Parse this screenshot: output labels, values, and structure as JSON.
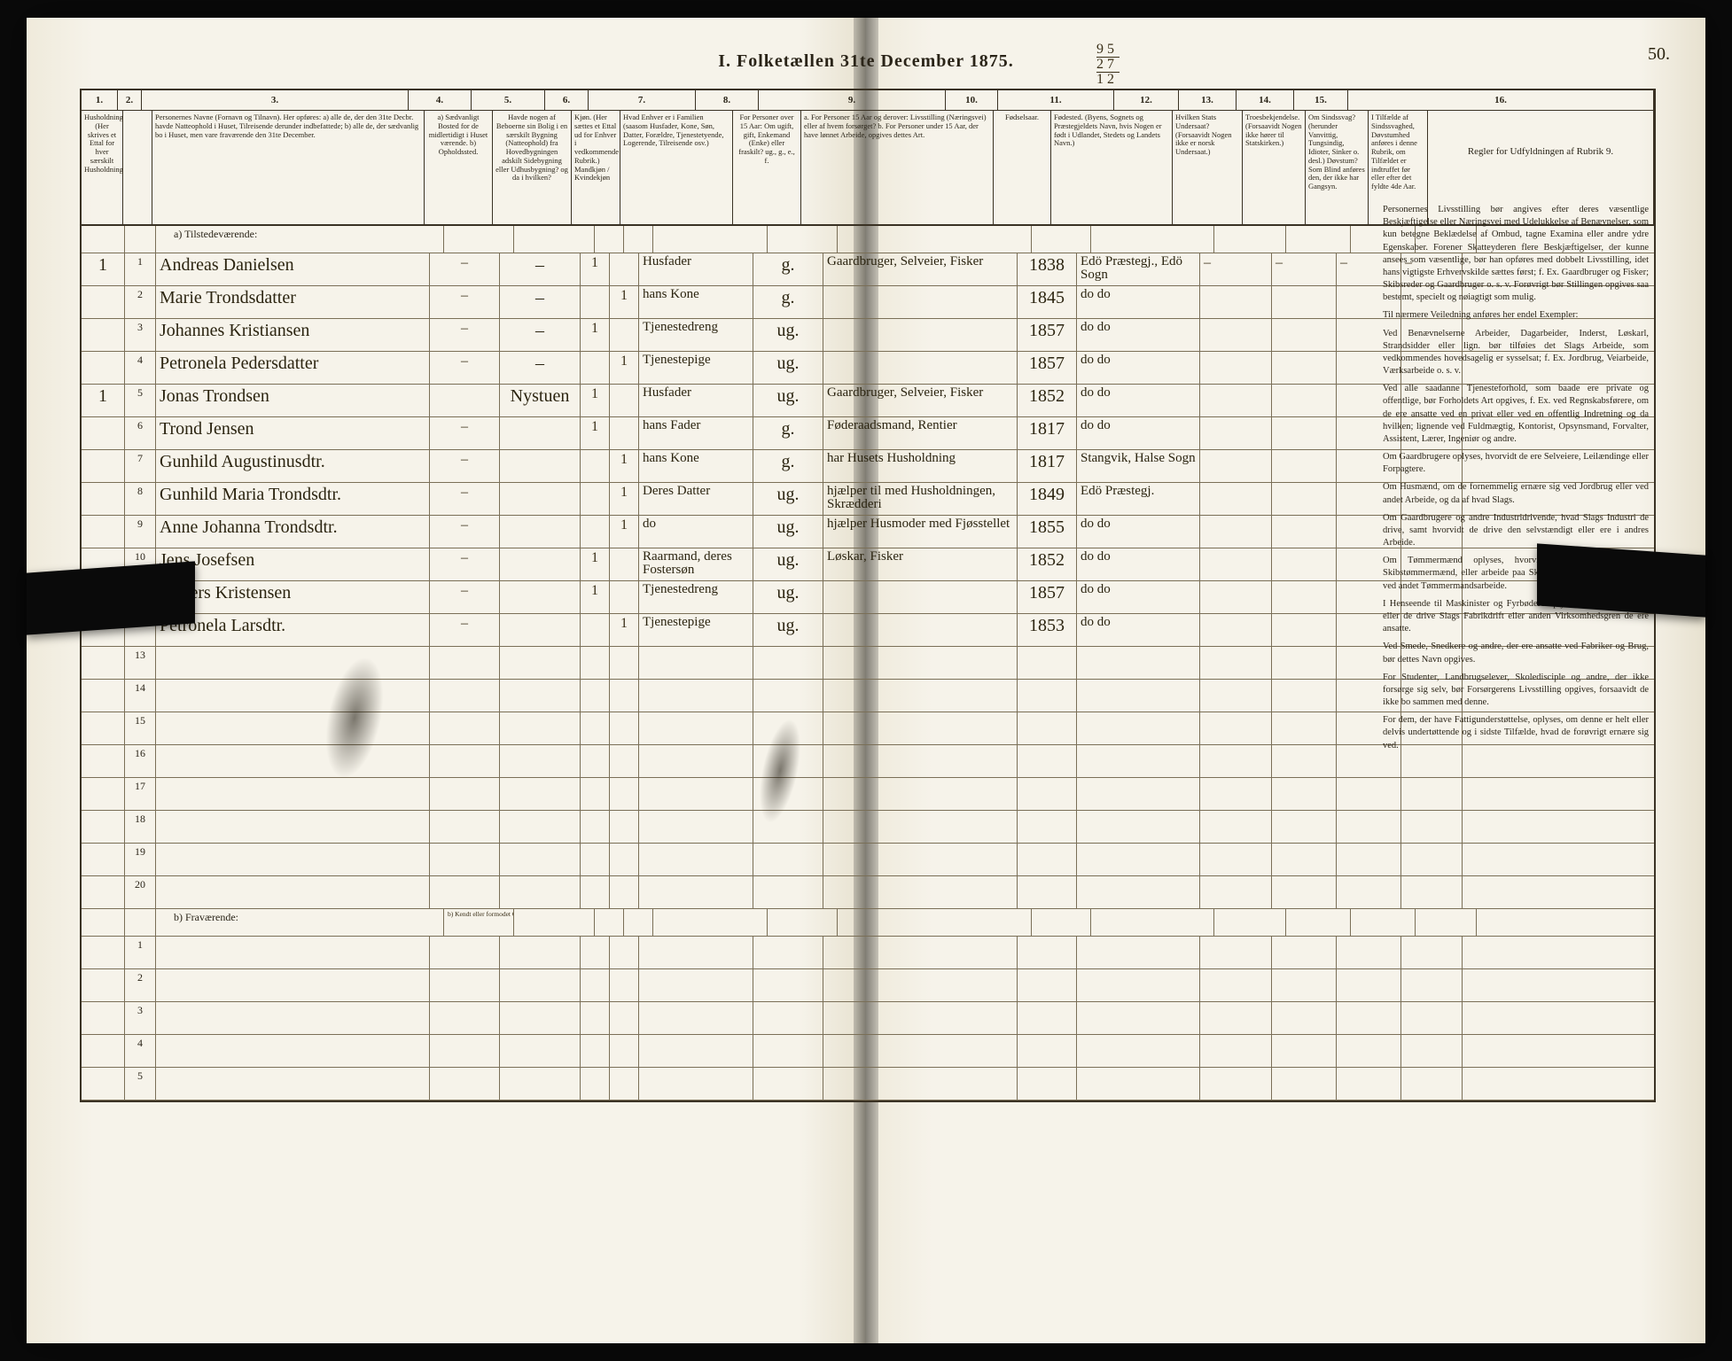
{
  "page_number_manuscript": "50.",
  "header_title": "I.  Folketællen 31te December 1875.",
  "fraction_annot": {
    "top": "9 5",
    "mid": "2 7",
    "bot": "1 2"
  },
  "columns": {
    "nums": [
      "1.",
      "2.",
      "3.",
      "4.",
      "5.",
      "6.",
      "7.",
      "8.",
      "9.",
      "10.",
      "11.",
      "12.",
      "13.",
      "14.",
      "15.",
      "16."
    ],
    "heads": [
      "Husholdninger. (Her skrives et Ettal for hver særskilt Husholdning)",
      "",
      "Personernes Navne (Fornavn og Tilnavn). Her opføres: a) alle de, der den 31te Decbr. havde Natteophold i Huset, Tilreisende derunder indbefattede; b) alle de, der sædvanlig bo i Huset, men vare fraværende den 31te December.",
      "a) Sædvanligt Bosted for de midlertidigt i Huset værende. b) Opholdssted.",
      "Havde nogen af Beboerne sin Bolig i en særskilt Bygning (Natteophold) fra Hovedbygningen adskilt Sidebygning eller Udhusbygning? og da i hvilken?",
      "Kjøn. (Her sættes et Ettal ud for Enhver i vedkommende Rubrik.)  Mandkjøn / Kvindekjøn",
      "Hvad Enhver er i Familien (saasom Husfader, Kone, Søn, Datter, Forældre, Tjenestetyende, Logerende, Tilreisende osv.)",
      "For Personer over 15 Aar: Om ugift, gift, Enkemand (Enke) eller fraskilt? ug., g., e., f.",
      "a. For Personer 15 Aar og derover: Livsstilling (Næringsvei) eller af hvem forsørget? b. For Personer under 15 Aar, der have lønnet Arbeide, opgives dettes Art.",
      "Fødselsaar.",
      "Fødested. (Byens, Sognets og Præstegjeldets Navn, hvis Nogen er født i Udlandet, Stedets og Landets Navn.)",
      "Hvilken Stats Undersaat? (Forsaavidt Nogen ikke er norsk Undersaat.)",
      "Troesbekjendelse. (Forsaavidt Nogen ikke hører til Statskirken.)",
      "Om Sindssvag? (herunder Vanvittig, Tungsindig, Idioter, Sinker o. desl.) Døvstum? Som Blind anføres den, der ikke har Gangsyn.",
      "I Tilfælde af Sindssvaghed, Døvstumhed anføres i denne Rubrik, om Tilfældet er indtruffet før eller efter det fyldte 4de Aar.",
      "Regler for Udfyldningen af Rubrik 9."
    ]
  },
  "section_a": "a) Tilstedeværende:",
  "section_b": "b) Fraværende:",
  "section_b_c4": "b) Kendt eller formodet Opholdssted.",
  "rows": [
    {
      "n": "1",
      "hh": "1",
      "name": "Andreas Danielsen",
      "c4": "–",
      "c5": "–",
      "m": "1",
      "k": "",
      "rel": "Husfader",
      "civ": "g.",
      "occ": "Gaardbruger, Selveier, Fisker",
      "yr": "1838",
      "place": "Edö Præstegj., Edö Sogn",
      "s12": "–",
      "s13": "–",
      "s14": "–",
      "s15": "–"
    },
    {
      "n": "2",
      "hh": "",
      "name": "Marie Trondsdatter",
      "c4": "–",
      "c5": "–",
      "m": "",
      "k": "1",
      "rel": "hans Kone",
      "civ": "g.",
      "occ": "",
      "yr": "1845",
      "place": "do   do",
      "s12": "",
      "s13": "",
      "s14": "",
      "s15": ""
    },
    {
      "n": "3",
      "hh": "",
      "name": "Johannes Kristiansen",
      "c4": "–",
      "c5": "–",
      "m": "1",
      "k": "",
      "rel": "Tjenestedreng",
      "civ": "ug.",
      "occ": "",
      "yr": "1857",
      "place": "do   do",
      "s12": "",
      "s13": "",
      "s14": "",
      "s15": ""
    },
    {
      "n": "4",
      "hh": "",
      "name": "Petronela Pedersdatter",
      "c4": "–",
      "c5": "–",
      "m": "",
      "k": "1",
      "rel": "Tjenestepige",
      "civ": "ug.",
      "occ": "",
      "yr": "1857",
      "place": "do   do",
      "s12": "",
      "s13": "",
      "s14": "",
      "s15": ""
    },
    {
      "n": "5",
      "hh": "1",
      "name": "Jonas Trondsen",
      "c4": "",
      "c5": "Nystuen",
      "m": "1",
      "k": "",
      "rel": "Husfader",
      "civ": "ug.",
      "occ": "Gaardbruger, Selveier, Fisker",
      "yr": "1852",
      "place": "do   do",
      "s12": "",
      "s13": "",
      "s14": "",
      "s15": ""
    },
    {
      "n": "6",
      "hh": "",
      "name": "Trond Jensen",
      "c4": "–",
      "c5": "",
      "m": "1",
      "k": "",
      "rel": "hans Fader",
      "civ": "g.",
      "occ": "Føderaadsmand, Rentier",
      "yr": "1817",
      "place": "do   do",
      "s12": "",
      "s13": "",
      "s14": "",
      "s15": ""
    },
    {
      "n": "7",
      "hh": "",
      "name": "Gunhild Augustinusdtr.",
      "c4": "–",
      "c5": "",
      "m": "",
      "k": "1",
      "rel": "hans Kone",
      "civ": "g.",
      "occ": "har Husets Husholdning",
      "yr": "1817",
      "place": "Stangvik, Halse Sogn",
      "s12": "",
      "s13": "",
      "s14": "",
      "s15": ""
    },
    {
      "n": "8",
      "hh": "",
      "name": "Gunhild Maria Trondsdtr.",
      "c4": "–",
      "c5": "",
      "m": "",
      "k": "1",
      "rel": "Deres Datter",
      "civ": "ug.",
      "occ": "hjælper til med Husholdningen, Skrædderi",
      "yr": "1849",
      "place": "Edö Præstegj.",
      "s12": "",
      "s13": "",
      "s14": "",
      "s15": ""
    },
    {
      "n": "9",
      "hh": "",
      "name": "Anne Johanna Trondsdtr.",
      "c4": "–",
      "c5": "",
      "m": "",
      "k": "1",
      "rel": "do",
      "civ": "ug.",
      "occ": "hjælper Husmoder med Fjøsstellet",
      "yr": "1855",
      "place": "do   do",
      "s12": "",
      "s13": "",
      "s14": "",
      "s15": ""
    },
    {
      "n": "10",
      "hh": "",
      "name": "Jens Josefsen",
      "c4": "–",
      "c5": "",
      "m": "1",
      "k": "",
      "rel": "Raarmand, deres Fostersøn",
      "civ": "ug.",
      "occ": "Løskar, Fisker",
      "yr": "1852",
      "place": "do   do",
      "s12": "",
      "s13": "",
      "s14": "",
      "s15": ""
    },
    {
      "n": "11",
      "hh": "",
      "name": "Anders Kristensen",
      "c4": "–",
      "c5": "",
      "m": "1",
      "k": "",
      "rel": "Tjenestedreng",
      "civ": "ug.",
      "occ": "",
      "yr": "1857",
      "place": "do   do",
      "s12": "",
      "s13": "",
      "s14": "",
      "s15": ""
    },
    {
      "n": "12",
      "hh": "",
      "name": "Petronela Larsdtr.",
      "c4": "–",
      "c5": "",
      "m": "",
      "k": "1",
      "rel": "Tjenestepige",
      "civ": "ug.",
      "occ": "",
      "yr": "1853",
      "place": "do   do",
      "s12": "",
      "s13": "",
      "s14": "",
      "s15": ""
    }
  ],
  "blank_rows_a": [
    "13",
    "14",
    "15",
    "16",
    "17",
    "18",
    "19",
    "20"
  ],
  "blank_rows_b": [
    "1",
    "2",
    "3",
    "4",
    "5"
  ],
  "rules": {
    "title": "Regler for Udfyldningen af Rubrik 9.",
    "paras": [
      "Personernes Livsstilling bør angives efter deres væsentlige Beskjæftigelse eller Næringsvei med Udelukkelse af Benævnelser, som kun betegne Beklædelse af Ombud, tagne Examina eller andre ydre Egenskaber. Forener Skatteyderen flere Beskjæftigelser, der kunne ansees som væsentlige, bør han opføres med dobbelt Livsstilling, idet hans vigtigste Erhvervskilde sættes først; f. Ex. Gaardbruger og Fisker; Skibsreder og Gaardbruger o. s. v. Forøvrigt bør Stillingen opgives saa bestemt, specielt og nøiagtigt som mulig.",
      "Til nærmere Veiledning anføres her endel Exempler:",
      "Ved Benævnelserne Arbeider, Dagarbeider, Inderst, Løskarl, Strandsidder eller lign. bør tilføies det Slags Arbeide, som vedkommendes hovedsagelig er sysselsat; f. Ex. Jordbrug, Veiarbeide, Værksarbeide o. s. v.",
      "Ved alle saadanne Tjenesteforhold, som baade ere private og offentlige, bør Forholdets Art opgives, f. Ex. ved Regnskabsførere, om de ere ansatte ved en privat eller ved en offentlig Indretning og da hvilken; lignende ved Fuldmægtig, Kontorist, Opsynsmand, Forvalter, Assistent, Lærer, Ingeniør og andre.",
      "Om Gaardbrugere oplyses, hvorvidt de ere Selveiere, Leilændinge eller Forpagtere.",
      "Om Husmænd, om de fornemmelig ernære sig ved Jordbrug eller ved andet Arbeide, og da af hvad Slags.",
      "Om Gaardbrugere og andre Industridrivende, hvad Slags Industri de drive, samt hvorvidt de drive den selvstændigt eller ere i andres Arbeide.",
      "Om Tømmermænd oplyses, hvorvidt de fare tilsøs som Skibstømmermænd, eller arbeide paa Skibsværfter, eller beskjæftiges ved andet Tømmermandsarbeide.",
      "I Henseende til Maskinister og Fyrbødere oplyses, om de fare tilsøs eller de drive Slags Fabrikdrift eller anden Virksomhedsgren de ere ansatte.",
      "Ved Smede, Snedkere og andre, der ere ansatte ved Fabriker og Brug, bør dettes Navn opgives.",
      "For Studenter, Landbrugselever, Skoledisciple og andre, der ikke forsørge sig selv, bør Forsørgerens Livsstilling opgives, forsaavidt de ikke bo sammen med denne.",
      "For dem, der have Fattigunderstøttelse, oplyses, om denne er helt eller delvis undertøttende og i sidste Tilfælde, hvad de forøvrigt ernære sig ved."
    ]
  },
  "colors": {
    "paper": "#f6f3ea",
    "ink": "#2a2418",
    "hand": "#2b2410",
    "rule": "#3a3224",
    "rule_light": "#7a6f57"
  }
}
